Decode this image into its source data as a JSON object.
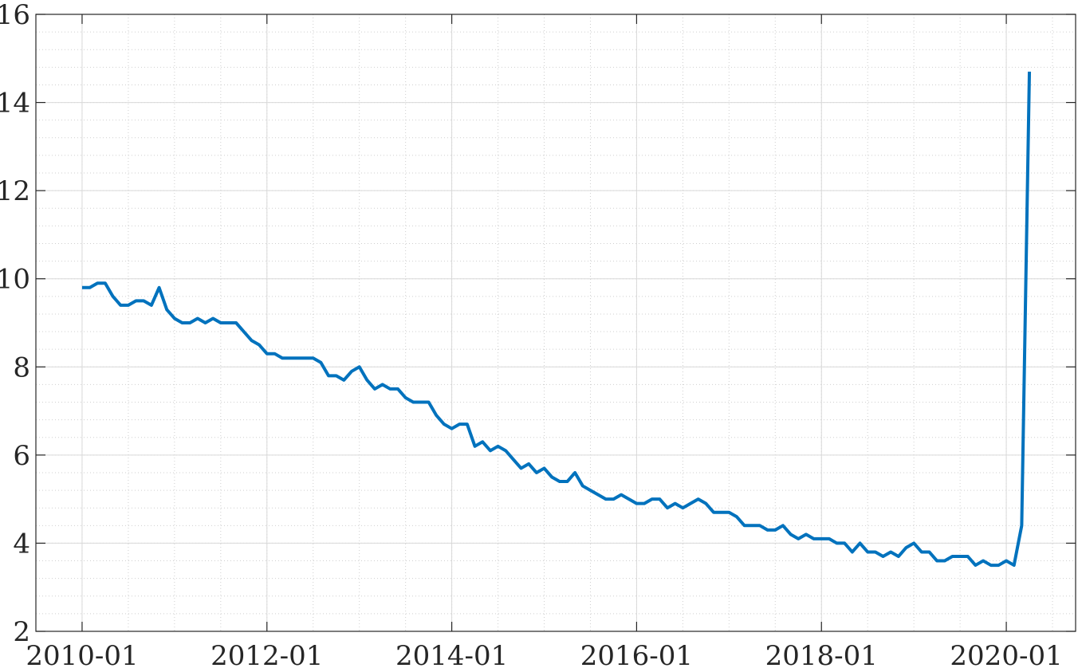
{
  "chart_data": {
    "type": "line",
    "title": "",
    "xlabel": "",
    "ylabel": "",
    "x_ticks": [
      "2010-01",
      "2012-01",
      "2014-01",
      "2016-01",
      "2018-01",
      "2020-01"
    ],
    "x_range": [
      "2010-01",
      "2020-04"
    ],
    "y_ticks": [
      2,
      4,
      6,
      8,
      10,
      12,
      14,
      16
    ],
    "ylim": [
      2,
      16
    ],
    "grid": "major solid, minor dotted",
    "line_color": "#0072bd",
    "series": [
      {
        "x_start": "2010-01",
        "x_step": "1 month",
        "values": [
          9.8,
          9.8,
          9.9,
          9.9,
          9.6,
          9.4,
          9.4,
          9.5,
          9.5,
          9.4,
          9.8,
          9.3,
          9.1,
          9.0,
          9.0,
          9.1,
          9.0,
          9.1,
          9.0,
          9.0,
          9.0,
          8.8,
          8.6,
          8.5,
          8.3,
          8.3,
          8.2,
          8.2,
          8.2,
          8.2,
          8.2,
          8.1,
          7.8,
          7.8,
          7.7,
          7.9,
          8.0,
          7.7,
          7.5,
          7.6,
          7.5,
          7.5,
          7.3,
          7.2,
          7.2,
          7.2,
          6.9,
          6.7,
          6.6,
          6.7,
          6.7,
          6.2,
          6.3,
          6.1,
          6.2,
          6.1,
          5.9,
          5.7,
          5.8,
          5.6,
          5.7,
          5.5,
          5.4,
          5.4,
          5.6,
          5.3,
          5.2,
          5.1,
          5.0,
          5.0,
          5.1,
          5.0,
          4.9,
          4.9,
          5.0,
          5.0,
          4.8,
          4.9,
          4.8,
          4.9,
          5.0,
          4.9,
          4.7,
          4.7,
          4.7,
          4.6,
          4.4,
          4.4,
          4.4,
          4.3,
          4.3,
          4.4,
          4.2,
          4.1,
          4.2,
          4.1,
          4.1,
          4.1,
          4.0,
          4.0,
          3.8,
          4.0,
          3.8,
          3.8,
          3.7,
          3.8,
          3.7,
          3.9,
          4.0,
          3.8,
          3.8,
          3.6,
          3.6,
          3.7,
          3.7,
          3.7,
          3.5,
          3.6,
          3.5,
          3.5,
          3.6,
          3.5,
          4.4,
          14.7
        ]
      }
    ]
  }
}
